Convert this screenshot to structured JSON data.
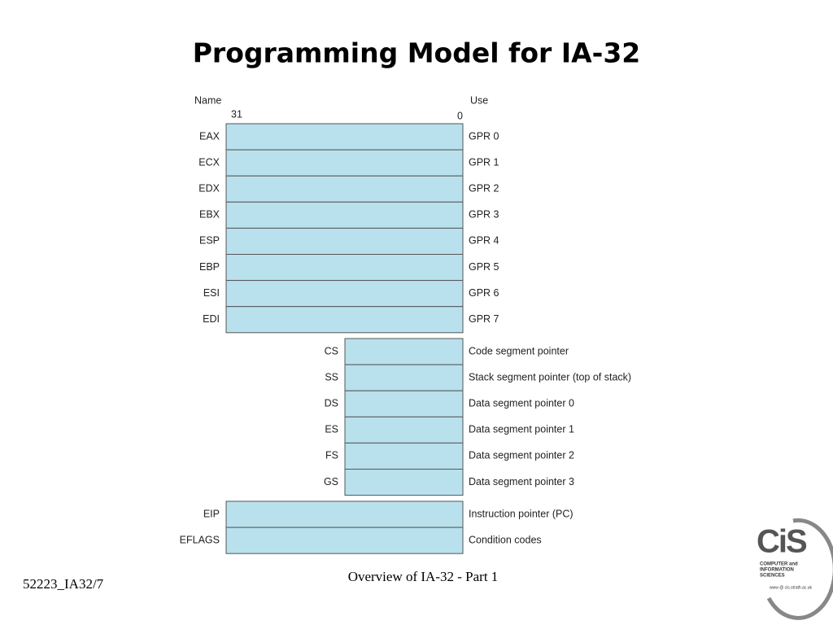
{
  "title": "Programming Model for IA-32",
  "headers": {
    "name": "Name",
    "use": "Use",
    "msb": "31",
    "lsb": "0"
  },
  "gpr": [
    {
      "name": "EAX",
      "use": "GPR 0"
    },
    {
      "name": "ECX",
      "use": "GPR 1"
    },
    {
      "name": "EDX",
      "use": "GPR 2"
    },
    {
      "name": "EBX",
      "use": "GPR 3"
    },
    {
      "name": "ESP",
      "use": "GPR 4"
    },
    {
      "name": "EBP",
      "use": "GPR 5"
    },
    {
      "name": "ESI",
      "use": "GPR 6"
    },
    {
      "name": "EDI",
      "use": "GPR 7"
    }
  ],
  "segment": [
    {
      "name": "CS",
      "use": "Code segment pointer"
    },
    {
      "name": "SS",
      "use": "Stack segment pointer (top of stack)"
    },
    {
      "name": "DS",
      "use": "Data segment pointer 0"
    },
    {
      "name": "ES",
      "use": "Data segment pointer 1"
    },
    {
      "name": "FS",
      "use": "Data segment pointer 2"
    },
    {
      "name": "GS",
      "use": "Data segment pointer 3"
    }
  ],
  "other": [
    {
      "name": "EIP",
      "use": "Instruction pointer (PC)"
    },
    {
      "name": "EFLAGS",
      "use": "Condition codes"
    }
  ],
  "footer": {
    "left": "52223_IA32/7",
    "center": "Overview of IA-32 - Part 1"
  },
  "logo": {
    "mark": "CiS",
    "line1": "COMPUTER and",
    "line2": "INFORMATION",
    "line3": "SCIENCES",
    "url": "www @ cis.strath.ac.uk"
  }
}
